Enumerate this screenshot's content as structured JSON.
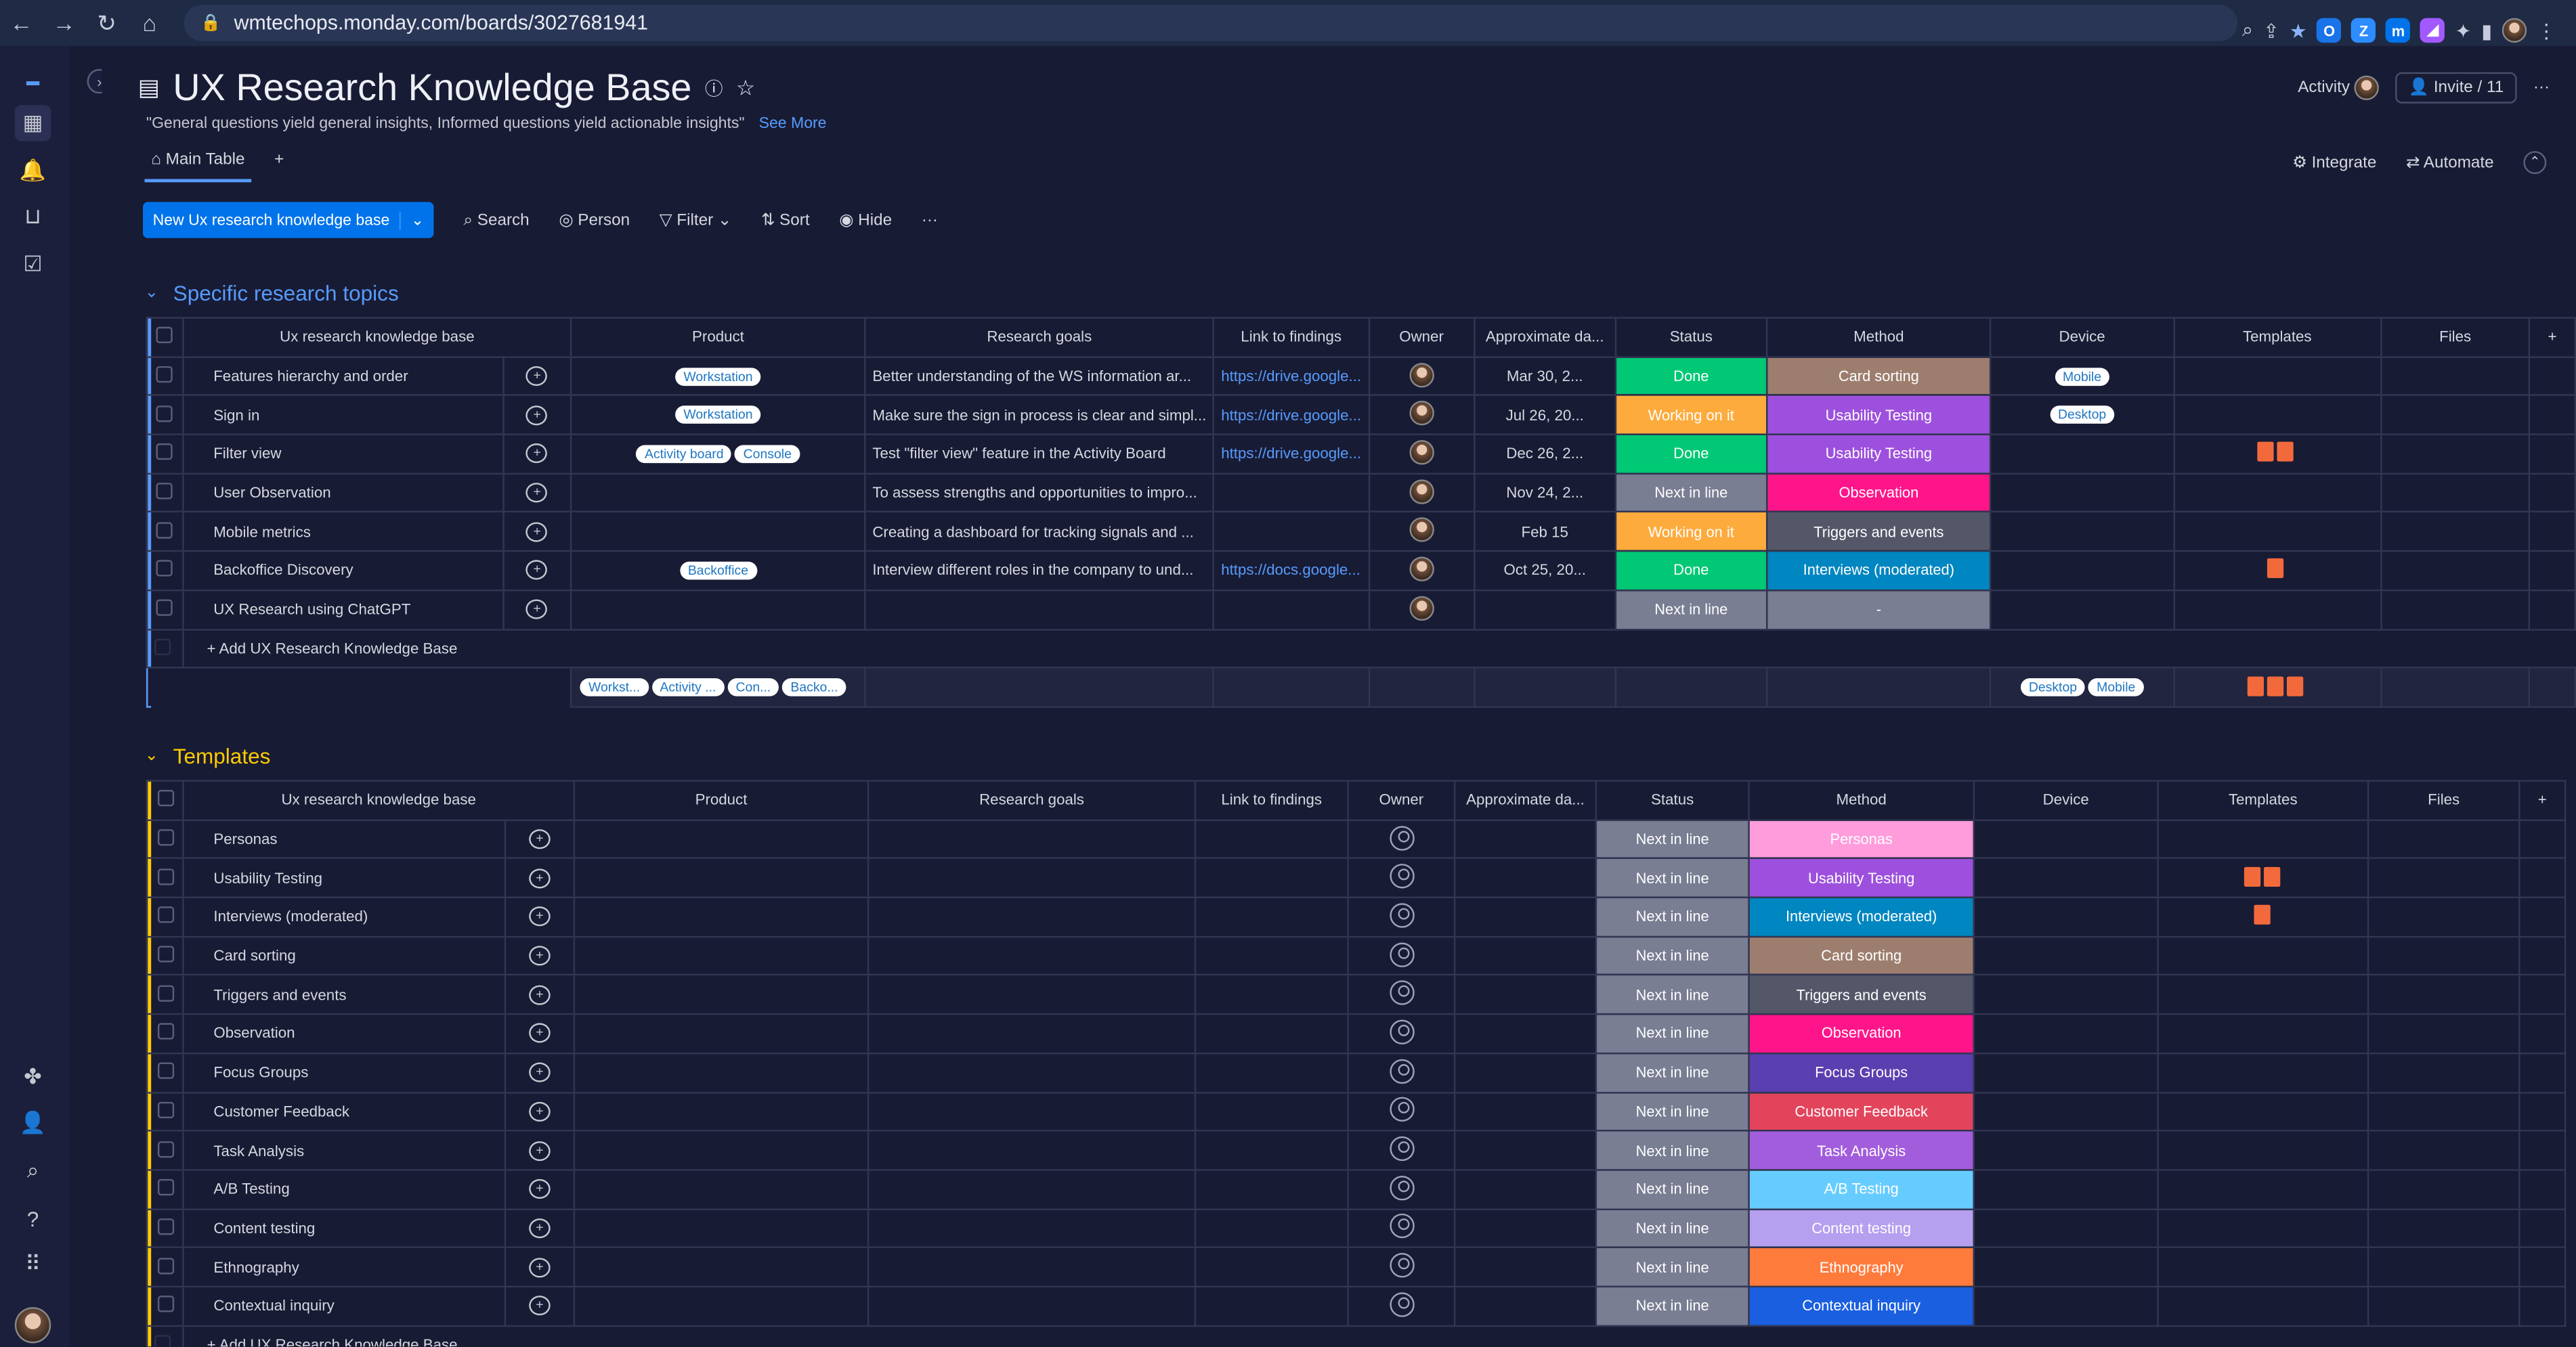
{
  "browser": {
    "url": "wmtechops.monday.com/boards/3027681941"
  },
  "board": {
    "title": "UX Research Knowledge Base",
    "description": "\"General questions yield general insights, Informed questions yield actionable insights\"",
    "see_more": "See More",
    "activity": "Activity",
    "invite": "Invite / 11"
  },
  "tabs": {
    "main": "Main Table",
    "add": "+",
    "integrate": "Integrate",
    "automate": "Automate"
  },
  "toolbar": {
    "new_item": "New Ux research knowledge base",
    "search": "Search",
    "person": "Person",
    "filter": "Filter",
    "sort": "Sort",
    "hide": "Hide",
    "more": "···"
  },
  "columns": [
    "Ux research knowledge base",
    "Product",
    "Research goals",
    "Link to findings",
    "Owner",
    "Approximate da...",
    "Status",
    "Method",
    "Device",
    "Templates",
    "Files"
  ],
  "groups": [
    {
      "name": "Specific research topics",
      "color": "#579bfc",
      "add_label": "+ Add UX Research Knowledge Base",
      "rows": [
        {
          "name": "Features hierarchy and order",
          "products": [
            "Workstation"
          ],
          "goal": "Better understanding of the WS information ar...",
          "link": "https://drive.google...",
          "owner": "photo",
          "date": "Mar 30, 2...",
          "status": "Done",
          "status_color": "#00c875",
          "method": "Card sorting",
          "method_color": "#9d7e6e",
          "devices": [
            "Mobile"
          ],
          "templates": 0
        },
        {
          "name": "Sign in",
          "products": [
            "Workstation"
          ],
          "goal": "Make sure the sign in process is clear and simpl...",
          "link": "https://drive.google...",
          "owner": "photo",
          "date": "Jul 26, 20...",
          "status": "Working on it",
          "status_color": "#fdab3d",
          "method": "Usability Testing",
          "method_color": "#9d50dd",
          "devices": [
            "Desktop"
          ],
          "templates": 0
        },
        {
          "name": "Filter view",
          "products": [
            "Activity board",
            "Console"
          ],
          "goal": "Test \"filter view\" feature in the Activity Board",
          "link": "https://drive.google...",
          "owner": "photo",
          "date": "Dec 26, 2...",
          "status": "Done",
          "status_color": "#00c875",
          "method": "Usability Testing",
          "method_color": "#9d50dd",
          "devices": [],
          "templates": 2
        },
        {
          "name": "User Observation",
          "products": [],
          "goal": "To assess strengths and opportunities to impro...",
          "link": "",
          "owner": "photo",
          "date": "Nov 24, 2...",
          "status": "Next in line",
          "status_color": "#797e93",
          "method": "Observation",
          "method_color": "#ff158a",
          "devices": [],
          "templates": 0
        },
        {
          "name": "Mobile metrics",
          "products": [],
          "goal": "Creating a dashboard for tracking signals and ...",
          "link": "",
          "owner": "photo",
          "date": "Feb 15",
          "status": "Working on it",
          "status_color": "#fdab3d",
          "method": "Triggers and events",
          "method_color": "#535768",
          "devices": [],
          "templates": 0
        },
        {
          "name": "Backoffice Discovery",
          "products": [
            "Backoffice"
          ],
          "goal": "Interview different roles in the company to und...",
          "link": "https://docs.google...",
          "owner": "photo",
          "date": "Oct 25, 20...",
          "status": "Done",
          "status_color": "#00c875",
          "method": "Interviews (moderated)",
          "method_color": "#0086c0",
          "devices": [],
          "templates": 1
        },
        {
          "name": "UX Research using ChatGPT",
          "products": [],
          "goal": "",
          "link": "",
          "owner": "photo",
          "date": "",
          "status": "Next in line",
          "status_color": "#797e93",
          "method": "-",
          "method_color": "#797e93",
          "devices": [],
          "templates": 0
        }
      ],
      "summary": {
        "products": [
          "Workst...",
          "Activity ...",
          "Con...",
          "Backo..."
        ],
        "devices": [
          "Desktop",
          "Mobile"
        ],
        "templates": 3
      }
    },
    {
      "name": "Templates",
      "color": "#ffcb00",
      "add_label": "+ Add UX Research Knowledge Base",
      "rows": [
        {
          "name": "Personas",
          "status": "Next in line",
          "method": "Personas",
          "method_color": "#ff9cdc",
          "templates": 0
        },
        {
          "name": "Usability Testing",
          "status": "Next in line",
          "method": "Usability Testing",
          "method_color": "#9d50dd",
          "templates": 2
        },
        {
          "name": "Interviews (moderated)",
          "status": "Next in line",
          "method": "Interviews (moderated)",
          "method_color": "#0086c0",
          "templates": 1
        },
        {
          "name": "Card sorting",
          "status": "Next in line",
          "method": "Card sorting",
          "method_color": "#9d7e6e",
          "templates": 0
        },
        {
          "name": "Triggers and events",
          "status": "Next in line",
          "method": "Triggers and events",
          "method_color": "#535768",
          "templates": 0
        },
        {
          "name": "Observation",
          "status": "Next in line",
          "method": "Observation",
          "method_color": "#ff158a",
          "templates": 0
        },
        {
          "name": "Focus Groups",
          "status": "Next in line",
          "method": "Focus Groups",
          "method_color": "#5a3fb0",
          "templates": 0
        },
        {
          "name": "Customer Feedback",
          "status": "Next in line",
          "method": "Customer Feedback",
          "method_color": "#e2445c",
          "templates": 0
        },
        {
          "name": "Task Analysis",
          "status": "Next in line",
          "method": "Task Analysis",
          "method_color": "#a25ddc",
          "templates": 0
        },
        {
          "name": "A/B Testing",
          "status": "Next in line",
          "method": "A/B Testing",
          "method_color": "#66ccff",
          "templates": 0
        },
        {
          "name": "Content testing",
          "status": "Next in line",
          "method": "Content testing",
          "method_color": "#b59fef",
          "templates": 0
        },
        {
          "name": "Ethnography",
          "status": "Next in line",
          "method": "Ethnography",
          "method_color": "#ff7b3c",
          "templates": 0
        },
        {
          "name": "Contextual inquiry",
          "status": "Next in line",
          "method": "Contextual inquiry",
          "method_color": "#1a5fe0",
          "templates": 0
        }
      ]
    }
  ]
}
